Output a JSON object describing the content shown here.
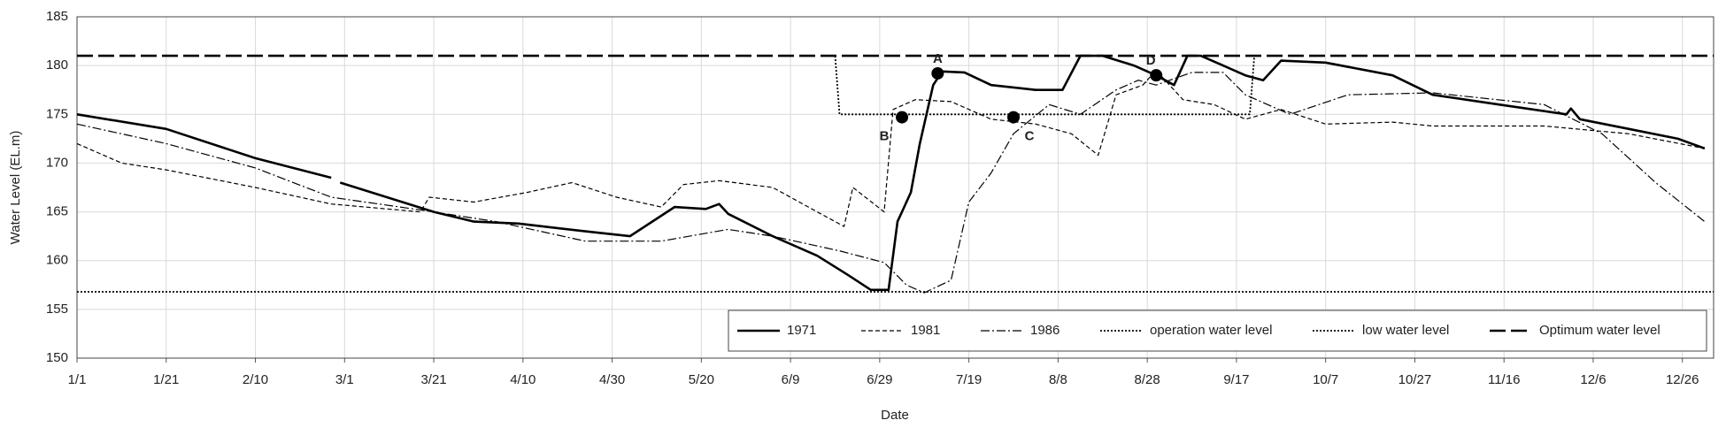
{
  "chart_data": {
    "type": "line",
    "xlabel": "Date",
    "ylabel": "Water Level (EL.m)",
    "xlim": [
      1,
      368
    ],
    "ylim": [
      150,
      185
    ],
    "xticks": [
      {
        "value": 1,
        "label": "1/1"
      },
      {
        "value": 21,
        "label": "1/21"
      },
      {
        "value": 41,
        "label": "2/10"
      },
      {
        "value": 61,
        "label": "3/1"
      },
      {
        "value": 81,
        "label": "3/21"
      },
      {
        "value": 101,
        "label": "4/10"
      },
      {
        "value": 121,
        "label": "4/30"
      },
      {
        "value": 141,
        "label": "5/20"
      },
      {
        "value": 161,
        "label": "6/9"
      },
      {
        "value": 181,
        "label": "6/29"
      },
      {
        "value": 201,
        "label": "7/19"
      },
      {
        "value": 221,
        "label": "8/8"
      },
      {
        "value": 241,
        "label": "8/28"
      },
      {
        "value": 261,
        "label": "9/17"
      },
      {
        "value": 281,
        "label": "10/7"
      },
      {
        "value": 301,
        "label": "10/27"
      },
      {
        "value": 321,
        "label": "11/16"
      },
      {
        "value": 341,
        "label": "12/6"
      },
      {
        "value": 361,
        "label": "12/26"
      }
    ],
    "yticks": [
      150,
      155,
      160,
      165,
      170,
      175,
      180,
      185
    ],
    "grid": true,
    "legend": "bottom-right",
    "series": [
      {
        "name": "1971",
        "color": "#000000",
        "dash": "solid",
        "width": 2.6,
        "x": [
          1,
          21,
          41,
          58,
          59,
          60,
          81,
          90,
          100,
          115,
          125,
          130,
          135,
          142,
          145,
          147,
          157,
          167,
          174,
          179,
          183,
          185,
          188,
          190,
          193,
          195,
          200,
          206,
          216,
          222,
          226,
          231,
          238,
          243,
          247,
          250,
          253,
          258,
          263,
          267,
          271,
          281,
          296,
          305,
          320,
          335,
          336,
          338,
          349,
          360,
          366
        ],
        "values": [
          175,
          173.5,
          170.5,
          168.5,
          null,
          168,
          165,
          164,
          163.8,
          163,
          162.5,
          164,
          165.5,
          165.3,
          165.8,
          164.8,
          162.5,
          160.5,
          158.5,
          157,
          157,
          164,
          167,
          172,
          178,
          179.4,
          179.3,
          178,
          177.5,
          177.5,
          181,
          181,
          180,
          179,
          178,
          181,
          181,
          180,
          179,
          178.5,
          180.5,
          180.3,
          179,
          177,
          176,
          175,
          175.6,
          174.5,
          173.5,
          172.5,
          171.5
        ]
      },
      {
        "name": "1981",
        "color": "#000000",
        "dash": "dashed",
        "width": 1.2,
        "x": [
          1,
          11,
          21,
          41,
          58,
          78,
          80,
          90,
          102,
          112,
          122,
          132,
          137,
          145,
          157,
          167,
          173,
          175,
          182,
          184,
          189,
          197,
          206,
          216,
          224,
          230,
          234,
          240,
          243,
          249,
          256,
          263,
          271,
          281,
          296,
          305,
          330,
          349,
          366
        ],
        "values": [
          172,
          170,
          169.3,
          167.5,
          165.8,
          165,
          166.5,
          166,
          167,
          168,
          166.5,
          165.5,
          167.8,
          168.2,
          167.5,
          165,
          163.5,
          167.5,
          165,
          175.5,
          176.5,
          176.3,
          174.5,
          174,
          173,
          170.8,
          177,
          178,
          179.5,
          176.5,
          176,
          174.5,
          175.5,
          174,
          174.2,
          173.8,
          173.8,
          173,
          171.5
        ]
      },
      {
        "name": "1986",
        "color": "#000000",
        "dash": "dashdot",
        "width": 1.2,
        "x": [
          1,
          21,
          41,
          58,
          78,
          95,
          115,
          132,
          147,
          157,
          172,
          182,
          187,
          191,
          197,
          201,
          206,
          211,
          219,
          226,
          234,
          239,
          243,
          251,
          258,
          263,
          273,
          286,
          305,
          330,
          343,
          355,
          366
        ],
        "values": [
          174,
          172,
          169.5,
          166.5,
          165.2,
          164,
          162,
          162,
          163.2,
          162.5,
          161,
          159.8,
          157.5,
          156.7,
          158,
          166,
          169,
          173,
          176,
          175,
          177.5,
          178.5,
          178,
          179.3,
          179.3,
          177,
          175,
          177,
          177.2,
          176,
          173,
          168,
          164
        ]
      },
      {
        "name": "operation water level",
        "color": "#000000",
        "dash": "dotted",
        "width": 1.8,
        "x": [
          171,
          172,
          264,
          265
        ],
        "values": [
          181,
          175,
          175,
          181
        ]
      },
      {
        "name": "low water level",
        "color": "#000000",
        "dash": "dotted",
        "width": 1.8,
        "x": [
          1,
          368
        ],
        "values": [
          156.8,
          156.8
        ]
      },
      {
        "name": "Optimum water level",
        "color": "#000000",
        "dash": "longdash",
        "width": 2.6,
        "x": [
          1,
          368
        ],
        "values": [
          181,
          181
        ]
      }
    ],
    "annotations": [
      {
        "label": "A",
        "x": 194,
        "y": 179.2
      },
      {
        "label": "B",
        "x": 186,
        "y": 174.7
      },
      {
        "label": "C",
        "x": 211,
        "y": 174.7
      },
      {
        "label": "D",
        "x": 243,
        "y": 179
      }
    ]
  }
}
